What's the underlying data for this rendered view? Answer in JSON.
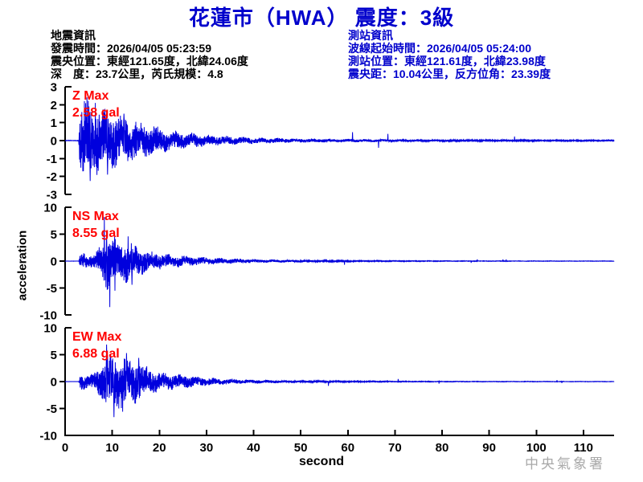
{
  "title": "花蓮市（HWA） 震度：3級",
  "earthquake_info": {
    "heading": "地震資訊",
    "line1": "發震時間：2026/04/05 05:23:59",
    "line2": "震央位置：東經121.65度，北緯24.06度",
    "line3": "深　度：23.7公里，芮氏規模：4.8"
  },
  "station_info": {
    "heading": "測站資訊",
    "line1": "波線起始時間：2026/04/05 05:24:00",
    "line2": "測站位置：東經121.61度，北緯23.98度",
    "line3": "震央距：10.04公里，反方位角：23.39度"
  },
  "watermark": "中央氣象署",
  "colors": {
    "title_blue": "#0000CC",
    "info_blue": "#0000CC",
    "trace_blue": "#0000DD",
    "max_red": "#FF0000",
    "axis_black": "#000000",
    "watermark_gray": "#A9A9A9"
  },
  "chart_data": {
    "type": "line",
    "xlabel": "second",
    "ylabel": "acceleration",
    "xlim": [
      0,
      116.5
    ],
    "xticks": [
      0,
      10,
      20,
      30,
      40,
      50,
      60,
      70,
      80,
      90,
      100,
      110
    ],
    "onset_s": 3.0,
    "channels": [
      {
        "id": "z",
        "max_label": "Z Max",
        "max_text": "2.58 gal",
        "max_gal": 2.58,
        "ylim": [
          -3,
          3
        ],
        "yticks": [
          3,
          2,
          1,
          0,
          -1,
          -2,
          -3
        ],
        "envelope": [
          [
            0,
            0.015
          ],
          [
            2.9,
            0.015
          ],
          [
            3.1,
            1.5
          ],
          [
            4,
            2.0
          ],
          [
            5,
            1.9
          ],
          [
            6,
            1.65
          ],
          [
            8,
            1.5
          ],
          [
            10,
            1.4
          ],
          [
            12,
            1.2
          ],
          [
            14,
            1.05
          ],
          [
            16,
            0.9
          ],
          [
            18,
            0.75
          ],
          [
            20,
            0.62
          ],
          [
            23,
            0.48
          ],
          [
            26,
            0.38
          ],
          [
            30,
            0.28
          ],
          [
            35,
            0.2
          ],
          [
            40,
            0.15
          ],
          [
            45,
            0.12
          ],
          [
            50,
            0.1
          ],
          [
            55,
            0.09
          ],
          [
            60,
            0.08
          ],
          [
            70,
            0.06
          ],
          [
            80,
            0.05
          ],
          [
            90,
            0.04
          ],
          [
            116,
            0.03
          ]
        ],
        "spikes": [
          [
            4.1,
            2.2
          ],
          [
            5.3,
            -2.25
          ],
          [
            6.4,
            2.1
          ],
          [
            9.0,
            -1.9
          ],
          [
            12.5,
            1.5
          ]
        ]
      },
      {
        "id": "ns",
        "max_label": "NS Max",
        "max_text": "8.55 gal",
        "max_gal": 8.55,
        "ylim": [
          -10,
          10
        ],
        "yticks": [
          10,
          5,
          0,
          -5,
          -10
        ],
        "envelope": [
          [
            0,
            0.02
          ],
          [
            2.9,
            0.02
          ],
          [
            3.1,
            1.0
          ],
          [
            4,
            1.3
          ],
          [
            5,
            1.1
          ],
          [
            6,
            1.2
          ],
          [
            7,
            1.8
          ],
          [
            8,
            3.3
          ],
          [
            9,
            4.4
          ],
          [
            10,
            4.2
          ],
          [
            11,
            3.4
          ],
          [
            12,
            3.0
          ],
          [
            13,
            3.5
          ],
          [
            14,
            3.0
          ],
          [
            15,
            2.5
          ],
          [
            16,
            2.2
          ],
          [
            18,
            1.7
          ],
          [
            20,
            1.35
          ],
          [
            22,
            1.1
          ],
          [
            25,
            0.9
          ],
          [
            28,
            0.7
          ],
          [
            30,
            0.58
          ],
          [
            35,
            0.42
          ],
          [
            40,
            0.32
          ],
          [
            45,
            0.24
          ],
          [
            50,
            0.18
          ],
          [
            55,
            0.14
          ],
          [
            60,
            0.11
          ],
          [
            70,
            0.08
          ],
          [
            80,
            0.06
          ],
          [
            90,
            0.05
          ],
          [
            116,
            0.04
          ]
        ],
        "spikes": [
          [
            8.3,
            8.2
          ],
          [
            9.5,
            -8.55
          ],
          [
            8.8,
            5.2
          ],
          [
            10.6,
            -5.5
          ],
          [
            13.4,
            4.6
          ],
          [
            14.2,
            -4.4
          ]
        ]
      },
      {
        "id": "ew",
        "max_label": "EW Max",
        "max_text": "6.88 gal",
        "max_gal": 6.88,
        "ylim": [
          -10,
          10
        ],
        "yticks": [
          10,
          5,
          0,
          -5,
          -10
        ],
        "envelope": [
          [
            0,
            0.02
          ],
          [
            2.9,
            0.02
          ],
          [
            3.1,
            1.2
          ],
          [
            4,
            1.4
          ],
          [
            5,
            1.1
          ],
          [
            6,
            1.4
          ],
          [
            7,
            2.1
          ],
          [
            8,
            3.3
          ],
          [
            9,
            4.3
          ],
          [
            10,
            3.8
          ],
          [
            11,
            4.1
          ],
          [
            12,
            4.3
          ],
          [
            13,
            3.9
          ],
          [
            14,
            3.4
          ],
          [
            15,
            3.6
          ],
          [
            16,
            3.0
          ],
          [
            17,
            2.6
          ],
          [
            18,
            2.1
          ],
          [
            20,
            1.65
          ],
          [
            22,
            1.3
          ],
          [
            25,
            1.05
          ],
          [
            28,
            0.8
          ],
          [
            30,
            0.65
          ],
          [
            33,
            0.5
          ],
          [
            36,
            0.4
          ],
          [
            40,
            0.32
          ],
          [
            45,
            0.24
          ],
          [
            50,
            0.18
          ],
          [
            55,
            0.14
          ],
          [
            60,
            0.11
          ],
          [
            70,
            0.08
          ],
          [
            80,
            0.06
          ],
          [
            90,
            0.05
          ],
          [
            116,
            0.04
          ]
        ],
        "spikes": [
          [
            8.8,
            6.88
          ],
          [
            10.4,
            -6.6
          ],
          [
            9.6,
            5.1
          ],
          [
            12.2,
            -5.6
          ],
          [
            13.0,
            5.3
          ],
          [
            15.6,
            4.4
          ],
          [
            11.4,
            -5.0
          ]
        ]
      }
    ]
  }
}
